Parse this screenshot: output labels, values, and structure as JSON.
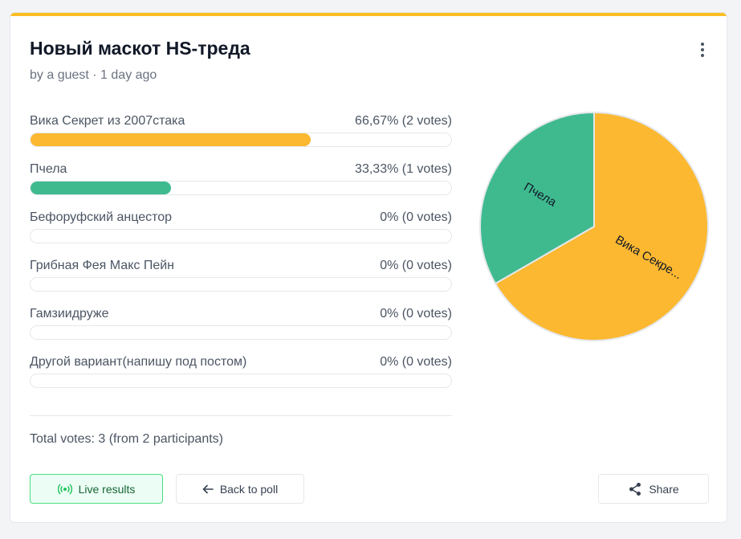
{
  "poll": {
    "title": "Новый маскот HS-треда",
    "meta": "by a guest · 1 day ago",
    "total": "Total votes: 3 (from 2 participants)"
  },
  "options": [
    {
      "label": "Вика Секрет из 2007стака",
      "pct": "66,67% (2 votes)",
      "value": 66.67,
      "color": "#fbb830"
    },
    {
      "label": "Пчела",
      "pct": "33,33% (1 votes)",
      "value": 33.33,
      "color": "#3fba8f"
    },
    {
      "label": "Бефоруфский анцестор",
      "pct": "0% (0 votes)",
      "value": 0,
      "color": "#fbb830"
    },
    {
      "label": "Грибная Фея Макс Пейн",
      "pct": "0% (0 votes)",
      "value": 0,
      "color": "#fbb830"
    },
    {
      "label": "Гамзиидруже",
      "pct": "0% (0 votes)",
      "value": 0,
      "color": "#fbb830"
    },
    {
      "label": "Другой вариант(напишу под постом)",
      "pct": "0% (0 votes)",
      "value": 0,
      "color": "#fbb830"
    }
  ],
  "buttons": {
    "live": "Live results",
    "back": "Back to poll",
    "share": "Share"
  },
  "icons": {
    "live": "broadcast-icon",
    "back": "arrow-left-icon",
    "share": "share-icon",
    "menu": "kebab-menu-icon"
  },
  "chart_data": {
    "type": "pie",
    "categories": [
      "Вика Секрет из 2007стака",
      "Пчела"
    ],
    "values": [
      66.67,
      33.33
    ],
    "slice_labels": [
      "Вика Секре...",
      "Пчела"
    ],
    "colors": [
      "#fbb830",
      "#3fba8f"
    ]
  }
}
